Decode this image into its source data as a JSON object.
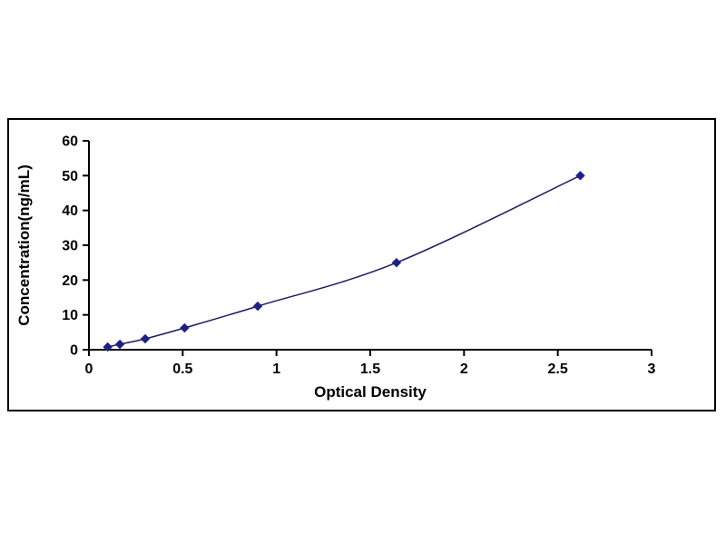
{
  "page": {
    "background": "#ffffff"
  },
  "chart_data": {
    "type": "line",
    "title": "",
    "xlabel": "Optical Density",
    "ylabel": "Concentration(ng/mL)",
    "x": [
      0.1,
      0.165,
      0.3,
      0.51,
      0.9,
      1.64,
      2.62
    ],
    "y": [
      0.78,
      1.56,
      3.12,
      6.25,
      12.5,
      25,
      50
    ],
    "xlim": [
      0,
      3
    ],
    "ylim": [
      0,
      60
    ],
    "x_ticks": [
      0,
      0.5,
      1,
      1.5,
      2,
      2.5,
      3
    ],
    "y_ticks": [
      0,
      10,
      20,
      30,
      40,
      50,
      60
    ],
    "grid": false,
    "legend": false,
    "line_color": "#1b1b63",
    "marker": "diamond",
    "marker_color": "#1f1f8a",
    "axis_color": "#000000",
    "frame_color": "#000000"
  }
}
